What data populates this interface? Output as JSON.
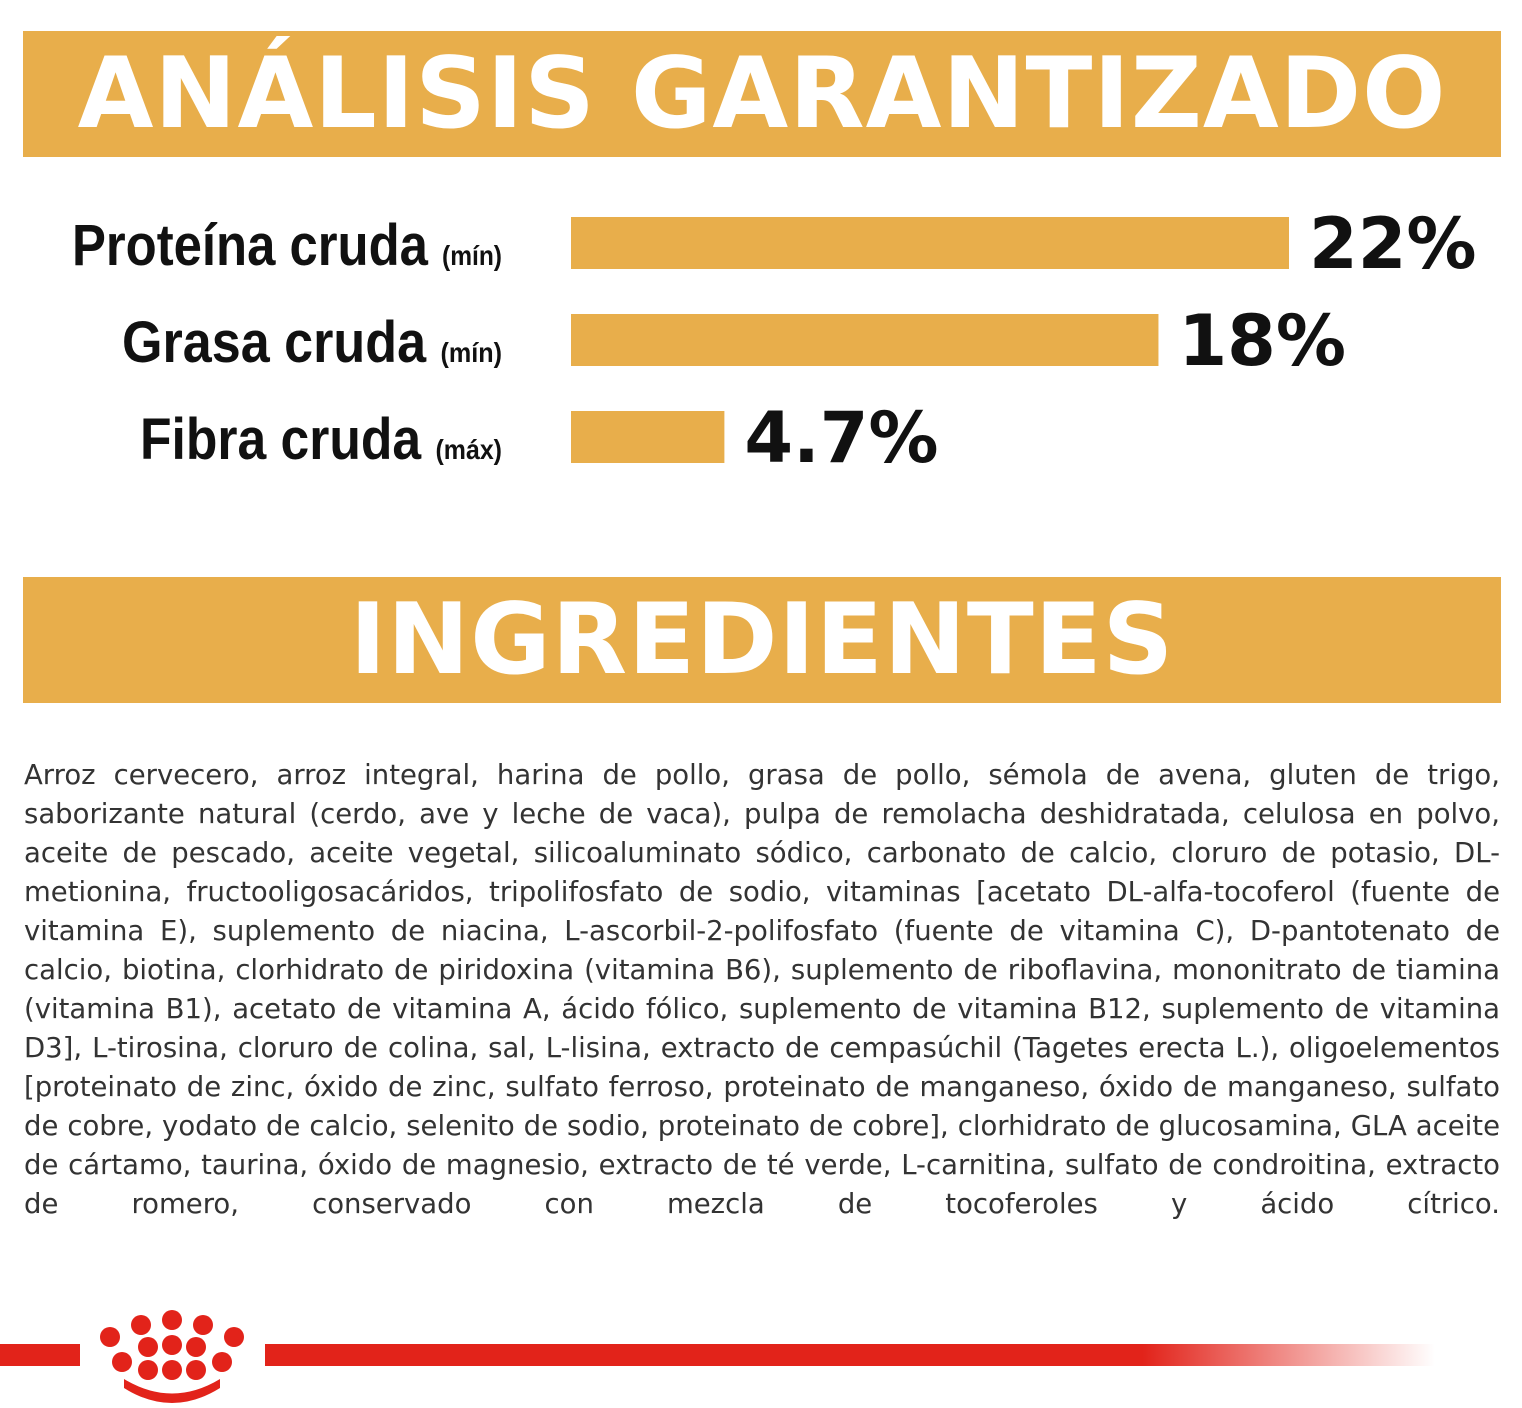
{
  "headers": {
    "analysis": "ANÁLISIS GARANTIZADO",
    "ingredients": "INGREDIENTES"
  },
  "colors": {
    "accent": "#E8AE4B",
    "brand_red": "#E2231A",
    "text_dark": "#111111",
    "text_body": "#333333"
  },
  "chart_data": {
    "type": "bar",
    "orientation": "horizontal",
    "categories": [
      "Proteína cruda",
      "Grasa cruda",
      "Fibra cruda"
    ],
    "qualifiers": [
      "(mín)",
      "(mín)",
      "(máx)"
    ],
    "values": [
      22,
      18,
      4.7
    ],
    "value_labels": [
      "22%",
      "18%",
      "4.7%"
    ],
    "unit": "%",
    "grid": false,
    "legend": false
  },
  "ingredients": {
    "text": "Arroz cervecero, arroz integral, harina de pollo, grasa de pollo, sémola de avena, gluten de trigo, saborizante natural (cerdo, ave y leche de vaca), pulpa de remolacha deshidratada, celulosa en polvo, aceite de pescado, aceite vegetal, silicoaluminato sódico, carbonato de calcio, cloruro de potasio, DL-metionina, fructooligosacáridos, tripolifosfato de sodio, vitaminas [acetato DL-alfa-tocoferol (fuente de vitamina E), suplemento de niacina, L-ascorbil-2-polifosfato (fuente de vitamina C), D-pantotenato de calcio, biotina, clorhidrato de piridoxina (vitamina B6), suplemento de riboflavina, mononitrato de tiamina (vitamina B1), acetato de vitamina A, ácido fólico, suplemento de vitamina B12, suplemento de vitamina D3], L-tirosina, cloruro de colina, sal, L-lisina, extracto de cempasúchil (Tagetes erecta L.), oligoelementos [proteinato de zinc, óxido de zinc, sulfato ferroso, proteinato de manganeso, óxido de manganeso, sulfato de cobre, yodato de calcio, selenito de sodio, proteinato de cobre], clorhidrato de glucosamina, GLA aceite de cártamo, taurina, óxido de magnesio, extracto de té verde, L-carnitina, sulfato de condroitina, extracto de romero, conservado con mezcla de tocoferoles y ácido cítrico."
  },
  "footer": {
    "logo_icon": "royal-canin-crown-icon"
  }
}
